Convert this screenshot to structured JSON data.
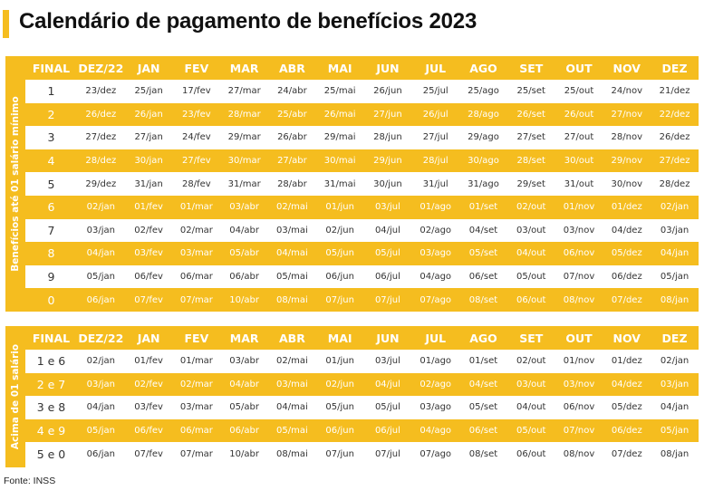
{
  "title": "Calendário de pagamento de benefícios 2023",
  "colors": {
    "accent": "#f5bd1f",
    "white": "#ffffff"
  },
  "header": [
    "FINAL",
    "DEZ/22",
    "JAN",
    "FEV",
    "MAR",
    "ABR",
    "MAI",
    "JUN",
    "JUL",
    "AGO",
    "SET",
    "OUT",
    "NOV",
    "DEZ"
  ],
  "table1": {
    "side_label": "Benefícios até 01 salário mínimo",
    "rows": [
      [
        "1",
        "23/dez",
        "25/jan",
        "17/fev",
        "27/mar",
        "24/abr",
        "25/mai",
        "26/jun",
        "25/jul",
        "25/ago",
        "25/set",
        "25/out",
        "24/nov",
        "21/dez"
      ],
      [
        "2",
        "26/dez",
        "26/jan",
        "23/fev",
        "28/mar",
        "25/abr",
        "26/mai",
        "27/jun",
        "26/jul",
        "28/ago",
        "26/set",
        "26/out",
        "27/nov",
        "22/dez"
      ],
      [
        "3",
        "27/dez",
        "27/jan",
        "24/fev",
        "29/mar",
        "26/abr",
        "29/mai",
        "28/jun",
        "27/jul",
        "29/ago",
        "27/set",
        "27/out",
        "28/nov",
        "26/dez"
      ],
      [
        "4",
        "28/dez",
        "30/jan",
        "27/fev",
        "30/mar",
        "27/abr",
        "30/mai",
        "29/jun",
        "28/jul",
        "30/ago",
        "28/set",
        "30/out",
        "29/nov",
        "27/dez"
      ],
      [
        "5",
        "29/dez",
        "31/jan",
        "28/fev",
        "31/mar",
        "28/abr",
        "31/mai",
        "30/jun",
        "31/jul",
        "31/ago",
        "29/set",
        "31/out",
        "30/nov",
        "28/dez"
      ],
      [
        "6",
        "02/jan",
        "01/fev",
        "01/mar",
        "03/abr",
        "02/mai",
        "01/jun",
        "03/jul",
        "01/ago",
        "01/set",
        "02/out",
        "01/nov",
        "01/dez",
        "02/jan"
      ],
      [
        "7",
        "03/jan",
        "02/fev",
        "02/mar",
        "04/abr",
        "03/mai",
        "02/jun",
        "04/jul",
        "02/ago",
        "04/set",
        "03/out",
        "03/nov",
        "04/dez",
        "03/jan"
      ],
      [
        "8",
        "04/jan",
        "03/fev",
        "03/mar",
        "05/abr",
        "04/mai",
        "05/jun",
        "05/jul",
        "03/ago",
        "05/set",
        "04/out",
        "06/nov",
        "05/dez",
        "04/jan"
      ],
      [
        "9",
        "05/jan",
        "06/fev",
        "06/mar",
        "06/abr",
        "05/mai",
        "06/jun",
        "06/jul",
        "04/ago",
        "06/set",
        "05/out",
        "07/nov",
        "06/dez",
        "05/jan"
      ],
      [
        "0",
        "06/jan",
        "07/fev",
        "07/mar",
        "10/abr",
        "08/mai",
        "07/jun",
        "07/jul",
        "07/ago",
        "08/set",
        "06/out",
        "08/nov",
        "07/dez",
        "08/jan"
      ]
    ]
  },
  "table2": {
    "side_label": "Acima de 01 salário",
    "rows": [
      [
        "1 e 6",
        "02/jan",
        "01/fev",
        "01/mar",
        "03/abr",
        "02/mai",
        "01/jun",
        "03/jul",
        "01/ago",
        "01/set",
        "02/out",
        "01/nov",
        "01/dez",
        "02/jan"
      ],
      [
        "2 e 7",
        "03/jan",
        "02/fev",
        "02/mar",
        "04/abr",
        "03/mai",
        "02/jun",
        "04/jul",
        "02/ago",
        "04/set",
        "03/out",
        "03/nov",
        "04/dez",
        "03/jan"
      ],
      [
        "3 e 8",
        "04/jan",
        "03/fev",
        "03/mar",
        "05/abr",
        "04/mai",
        "05/jun",
        "05/jul",
        "03/ago",
        "05/set",
        "04/out",
        "06/nov",
        "05/dez",
        "04/jan"
      ],
      [
        "4 e 9",
        "05/jan",
        "06/fev",
        "06/mar",
        "06/abr",
        "05/mai",
        "06/jun",
        "06/jul",
        "04/ago",
        "06/set",
        "05/out",
        "07/nov",
        "06/dez",
        "05/jan"
      ],
      [
        "5 e 0",
        "06/jan",
        "07/fev",
        "07/mar",
        "10/abr",
        "08/mai",
        "07/jun",
        "07/jul",
        "07/ago",
        "08/set",
        "06/out",
        "08/nov",
        "07/dez",
        "08/jan"
      ]
    ]
  },
  "source": "Fonte: INSS"
}
